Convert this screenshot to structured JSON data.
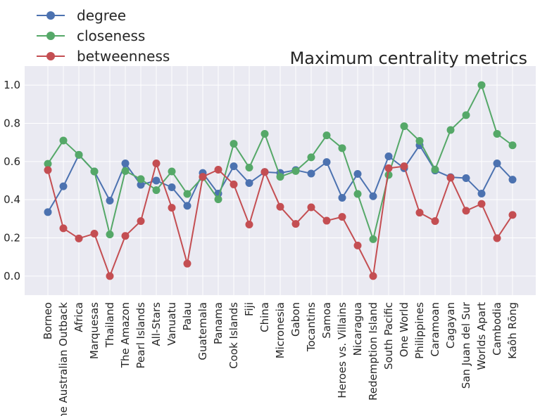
{
  "chart_data": {
    "type": "line",
    "title": "Maximum centrality metrics",
    "xlabel": "",
    "ylabel": "",
    "ylim": [
      -0.1,
      1.1
    ],
    "yticks": [
      "0.0",
      "0.2",
      "0.4",
      "0.6",
      "0.8",
      "1.0"
    ],
    "grid": true,
    "legend_position": "top-left",
    "categories": [
      "Borneo",
      "The Australian Outback",
      "Africa",
      "Marquesas",
      "Thailand",
      "The Amazon",
      "Pearl Islands",
      "All-Stars",
      "Vanuatu",
      "Palau",
      "Guatemala",
      "Panama",
      "Cook Islands",
      "Fiji",
      "China",
      "Micronesia",
      "Gabon",
      "Tocantins",
      "Samoa",
      "Heroes vs. Villains",
      "Nicaragua",
      "Redemption Island",
      "South Pacific",
      "One World",
      "Philippines",
      "Caramoan",
      "Cagayan",
      "San Juan del Sur",
      "Worlds Apart",
      "Cambodia",
      "Kaôh Rōng"
    ],
    "series": [
      {
        "name": "degree",
        "color": "#4c72b0",
        "values": [
          0.335,
          0.47,
          0.635,
          0.548,
          0.395,
          0.59,
          0.478,
          0.5,
          0.465,
          0.368,
          0.54,
          0.432,
          0.575,
          0.487,
          0.545,
          0.54,
          0.555,
          0.537,
          0.597,
          0.41,
          0.535,
          0.418,
          0.627,
          0.565,
          0.685,
          0.553,
          0.518,
          0.513,
          0.432,
          0.59,
          0.505
        ]
      },
      {
        "name": "closeness",
        "color": "#55a868",
        "values": [
          0.588,
          0.71,
          0.635,
          0.548,
          0.218,
          0.55,
          0.508,
          0.45,
          0.548,
          0.43,
          0.518,
          0.402,
          0.693,
          0.568,
          0.745,
          0.52,
          0.55,
          0.622,
          0.737,
          0.67,
          0.43,
          0.193,
          0.53,
          0.785,
          0.708,
          0.558,
          0.765,
          0.843,
          1.0,
          0.745,
          0.685
        ]
      },
      {
        "name": "betweenness",
        "color": "#c44e52",
        "values": [
          0.555,
          0.25,
          0.197,
          0.222,
          0.0,
          0.21,
          0.288,
          0.59,
          0.358,
          0.065,
          0.52,
          0.557,
          0.48,
          0.27,
          0.545,
          0.363,
          0.273,
          0.36,
          0.29,
          0.31,
          0.16,
          0.0,
          0.565,
          0.575,
          0.332,
          0.288,
          0.515,
          0.342,
          0.378,
          0.198,
          0.32
        ]
      }
    ]
  }
}
